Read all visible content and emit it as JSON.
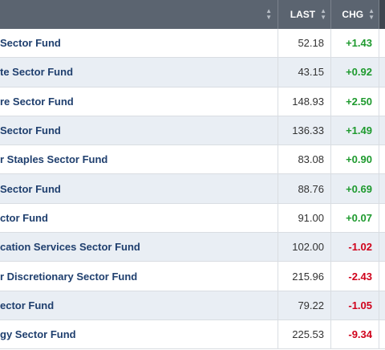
{
  "columns": {
    "last": "LAST",
    "chg": "CHG"
  },
  "rows": [
    {
      "name": "Sector Fund",
      "last": "52.18",
      "chg": "+1.43"
    },
    {
      "name": "te Sector Fund",
      "last": "43.15",
      "chg": "+0.92"
    },
    {
      "name": "re Sector Fund",
      "last": "148.93",
      "chg": "+2.50"
    },
    {
      "name": "Sector Fund",
      "last": "136.33",
      "chg": "+1.49"
    },
    {
      "name": "r Staples Sector Fund",
      "last": "83.08",
      "chg": "+0.90"
    },
    {
      "name": "Sector Fund",
      "last": "88.76",
      "chg": "+0.69"
    },
    {
      "name": "ctor Fund",
      "last": "91.00",
      "chg": "+0.07"
    },
    {
      "name": "cation Services Sector Fund",
      "last": "102.00",
      "chg": "-1.02"
    },
    {
      "name": "r Discretionary Sector Fund",
      "last": "215.96",
      "chg": "-2.43"
    },
    {
      "name": "ector Fund",
      "last": "79.22",
      "chg": "-1.05"
    },
    {
      "name": "gy Sector Fund",
      "last": "225.53",
      "chg": "-9.34"
    }
  ]
}
